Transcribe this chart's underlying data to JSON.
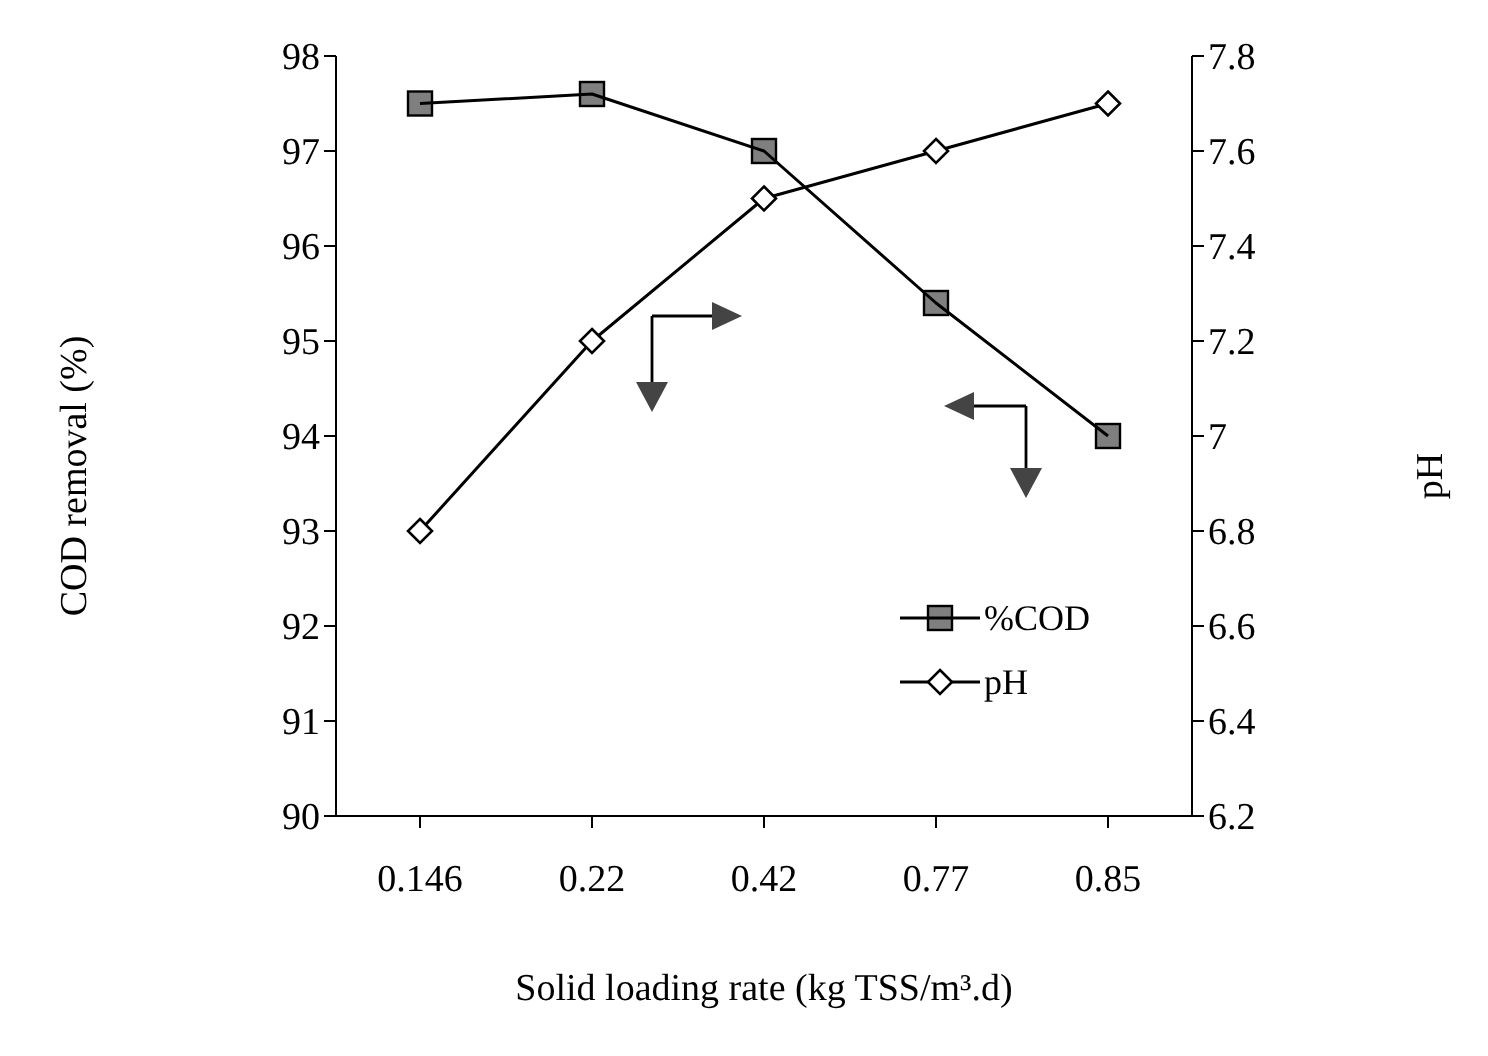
{
  "chart_data": {
    "type": "line",
    "xlabel": "Solid loading rate (kg TSS/m³.d)",
    "ylabel": "COD removal (%)",
    "y2label": "pH",
    "categories": [
      "0.146",
      "0.22",
      "0.42",
      "0.77",
      "0.85"
    ],
    "series": [
      {
        "name": "%COD",
        "color": "#000000",
        "marker": "square",
        "values": [
          97.5,
          97.6,
          97.0,
          95.4,
          94.0
        ]
      },
      {
        "name": "pH",
        "color": "#000000",
        "marker": "diamond",
        "axis": "y2",
        "values": [
          6.8,
          7.2,
          7.5,
          7.6,
          7.7
        ]
      }
    ],
    "ylim": [
      90,
      98
    ],
    "yticks": [
      90,
      91,
      92,
      93,
      94,
      95,
      96,
      97,
      98
    ],
    "y2lim": [
      6.2,
      7.8
    ],
    "y2ticks": [
      6.2,
      6.4,
      6.6,
      6.8,
      7,
      7.2,
      7.4,
      7.6,
      7.8
    ],
    "grid": false,
    "legend": "right",
    "line_style": "solid"
  }
}
